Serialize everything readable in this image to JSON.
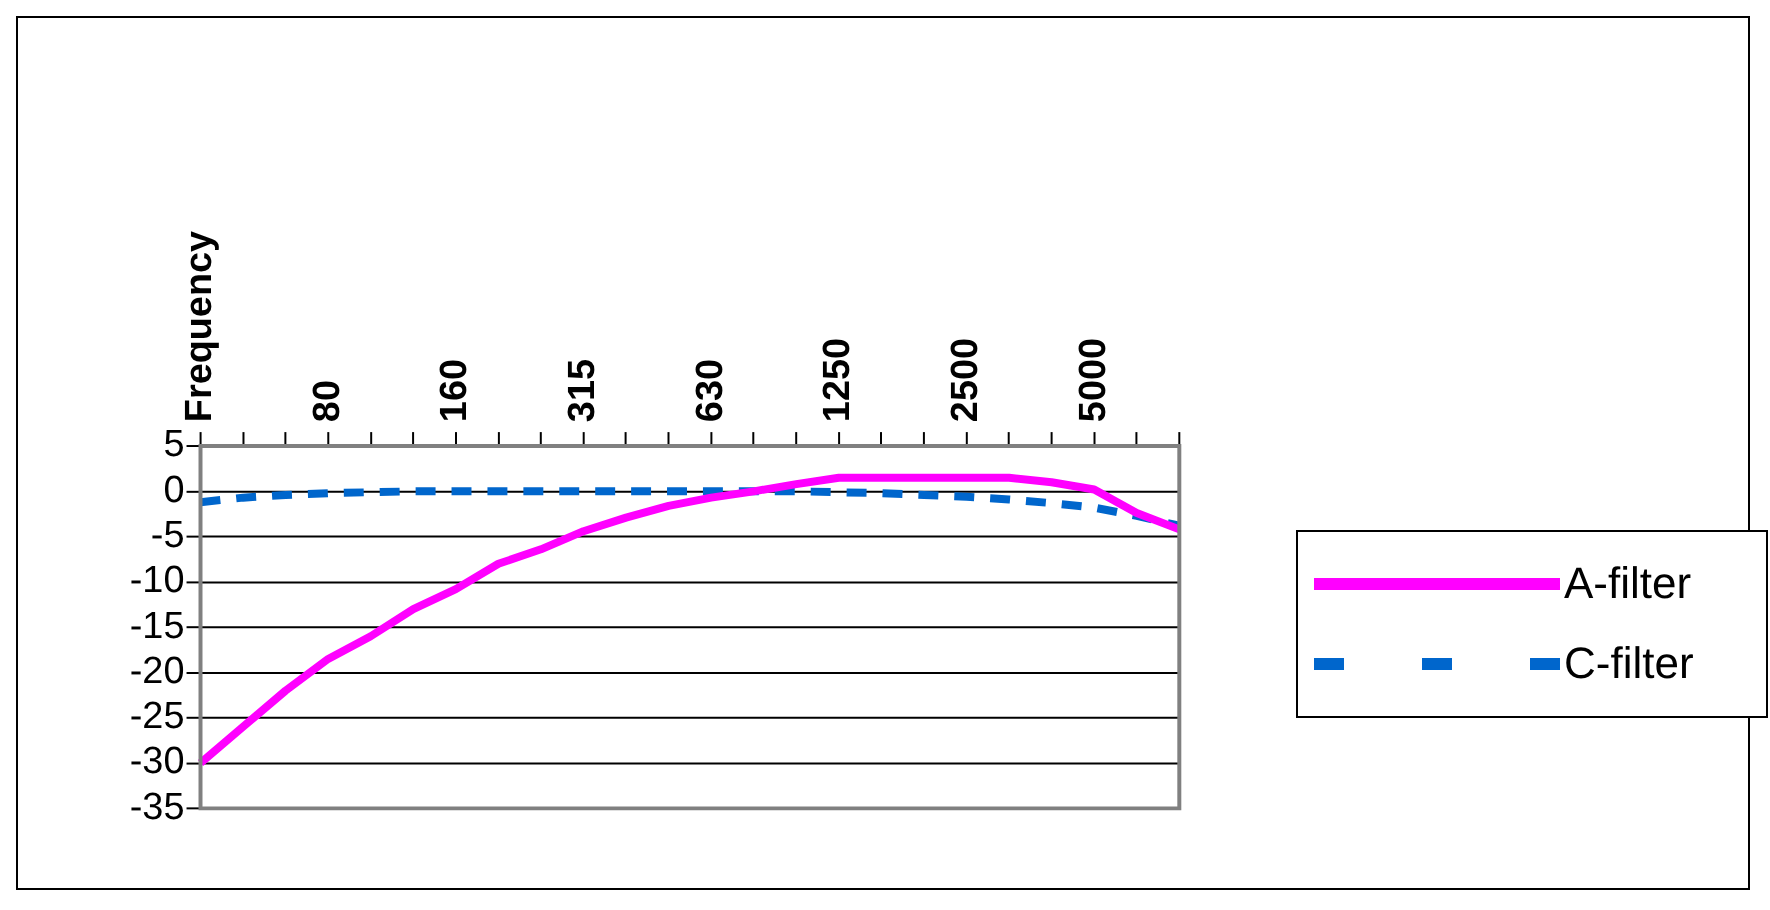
{
  "chart_data": {
    "type": "line",
    "categories": [
      "Frequency",
      null,
      null,
      "80",
      null,
      null,
      "160",
      null,
      null,
      "315",
      null,
      null,
      "630",
      null,
      null,
      "1250",
      null,
      null,
      "2500",
      null,
      null,
      "5000",
      null,
      null
    ],
    "series": [
      {
        "name": "A-filter",
        "color": "#ff00ff",
        "line_style": "solid",
        "values": [
          -30,
          -26,
          -22,
          -18.5,
          -16,
          -13,
          -10.8,
          -8,
          -6.4,
          -4.4,
          -2.9,
          -1.6,
          -0.7,
          0,
          0.8,
          1.5,
          1.5,
          1.5,
          1.5,
          1.5,
          1,
          0.2,
          -2.4,
          -4.2
        ]
      },
      {
        "name": "C-filter",
        "color": "#0066cc",
        "line_style": "dashed",
        "values": [
          -1.2,
          -0.7,
          -0.4,
          -0.2,
          -0.1,
          0,
          0,
          0,
          0,
          0,
          0,
          0,
          0,
          0,
          0,
          -0.1,
          -0.2,
          -0.4,
          -0.6,
          -0.9,
          -1.3,
          -1.8,
          -2.7,
          -3.8
        ]
      }
    ],
    "ylim": [
      -35,
      5
    ],
    "yticks": [
      -35,
      -30,
      -25,
      -20,
      -15,
      -10,
      -5,
      0,
      5
    ],
    "grid": "y",
    "legend": "right",
    "marker": "none"
  }
}
